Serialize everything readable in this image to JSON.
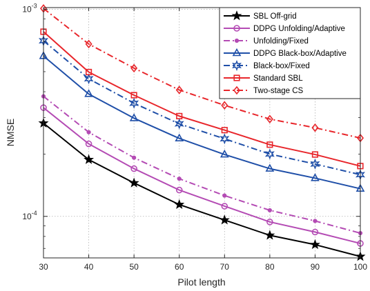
{
  "chart_data": {
    "type": "line",
    "xlabel": "Pilot length",
    "ylabel": "NMSE",
    "x": [
      30,
      40,
      50,
      60,
      70,
      80,
      90,
      100
    ],
    "xlim": [
      30,
      100
    ],
    "ylim": [
      6.3e-05,
      0.00102
    ],
    "yscale": "log",
    "x_ticks": [
      "30",
      "40",
      "50",
      "60",
      "70",
      "80",
      "90",
      "100"
    ],
    "y_ticks": [
      {
        "value": 0.0001,
        "base": "10",
        "exp": "-4"
      },
      {
        "value": 0.001,
        "base": "10",
        "exp": "-3"
      }
    ],
    "grid": true,
    "legend_position": "top-right",
    "series": [
      {
        "name": "SBL Off-grid",
        "color": "#000000",
        "dash": "solid",
        "marker": "star",
        "values": [
          0.000282,
          0.000188,
          0.000145,
          0.000114,
          9.6e-05,
          8.1e-05,
          7.3e-05,
          6.4e-05
        ]
      },
      {
        "name": "DDPG Unfolding/Adaptive",
        "color": "#b44bb4",
        "dash": "solid",
        "marker": "circle",
        "values": [
          0.000335,
          0.000224,
          0.00017,
          0.000134,
          0.000112,
          9.4e-05,
          8.4e-05,
          7.4e-05
        ]
      },
      {
        "name": "Unfolding/Fixed",
        "color": "#b44bb4",
        "dash": "dashdot",
        "marker": "dot",
        "values": [
          0.00038,
          0.000255,
          0.000192,
          0.000152,
          0.000126,
          0.000107,
          9.5e-05,
          8.3e-05
        ]
      },
      {
        "name": "DDPG Black-box/Adaptive",
        "color": "#1f4fa8",
        "dash": "solid",
        "marker": "triangle",
        "values": [
          0.000595,
          0.00039,
          0.000298,
          0.000238,
          0.000199,
          0.00017,
          0.000153,
          0.000136
        ]
      },
      {
        "name": "Black-box/Fixed",
        "color": "#1f4fa8",
        "dash": "dashdot",
        "marker": "hexstar",
        "values": [
          0.000705,
          0.000462,
          0.000352,
          0.00028,
          0.000237,
          0.0002,
          0.000179,
          0.000159
        ]
      },
      {
        "name": "Standard SBL",
        "color": "#e8262b",
        "dash": "solid",
        "marker": "square",
        "values": [
          0.00078,
          0.000498,
          0.000385,
          0.000305,
          0.000261,
          0.000222,
          0.000199,
          0.000175
        ]
      },
      {
        "name": "Two-stage CS",
        "color": "#e8262b",
        "dash": "dashdot",
        "marker": "diamond",
        "values": [
          0.00101,
          0.00068,
          0.00052,
          0.000408,
          0.000344,
          0.000295,
          0.000268,
          0.000239
        ]
      }
    ]
  }
}
